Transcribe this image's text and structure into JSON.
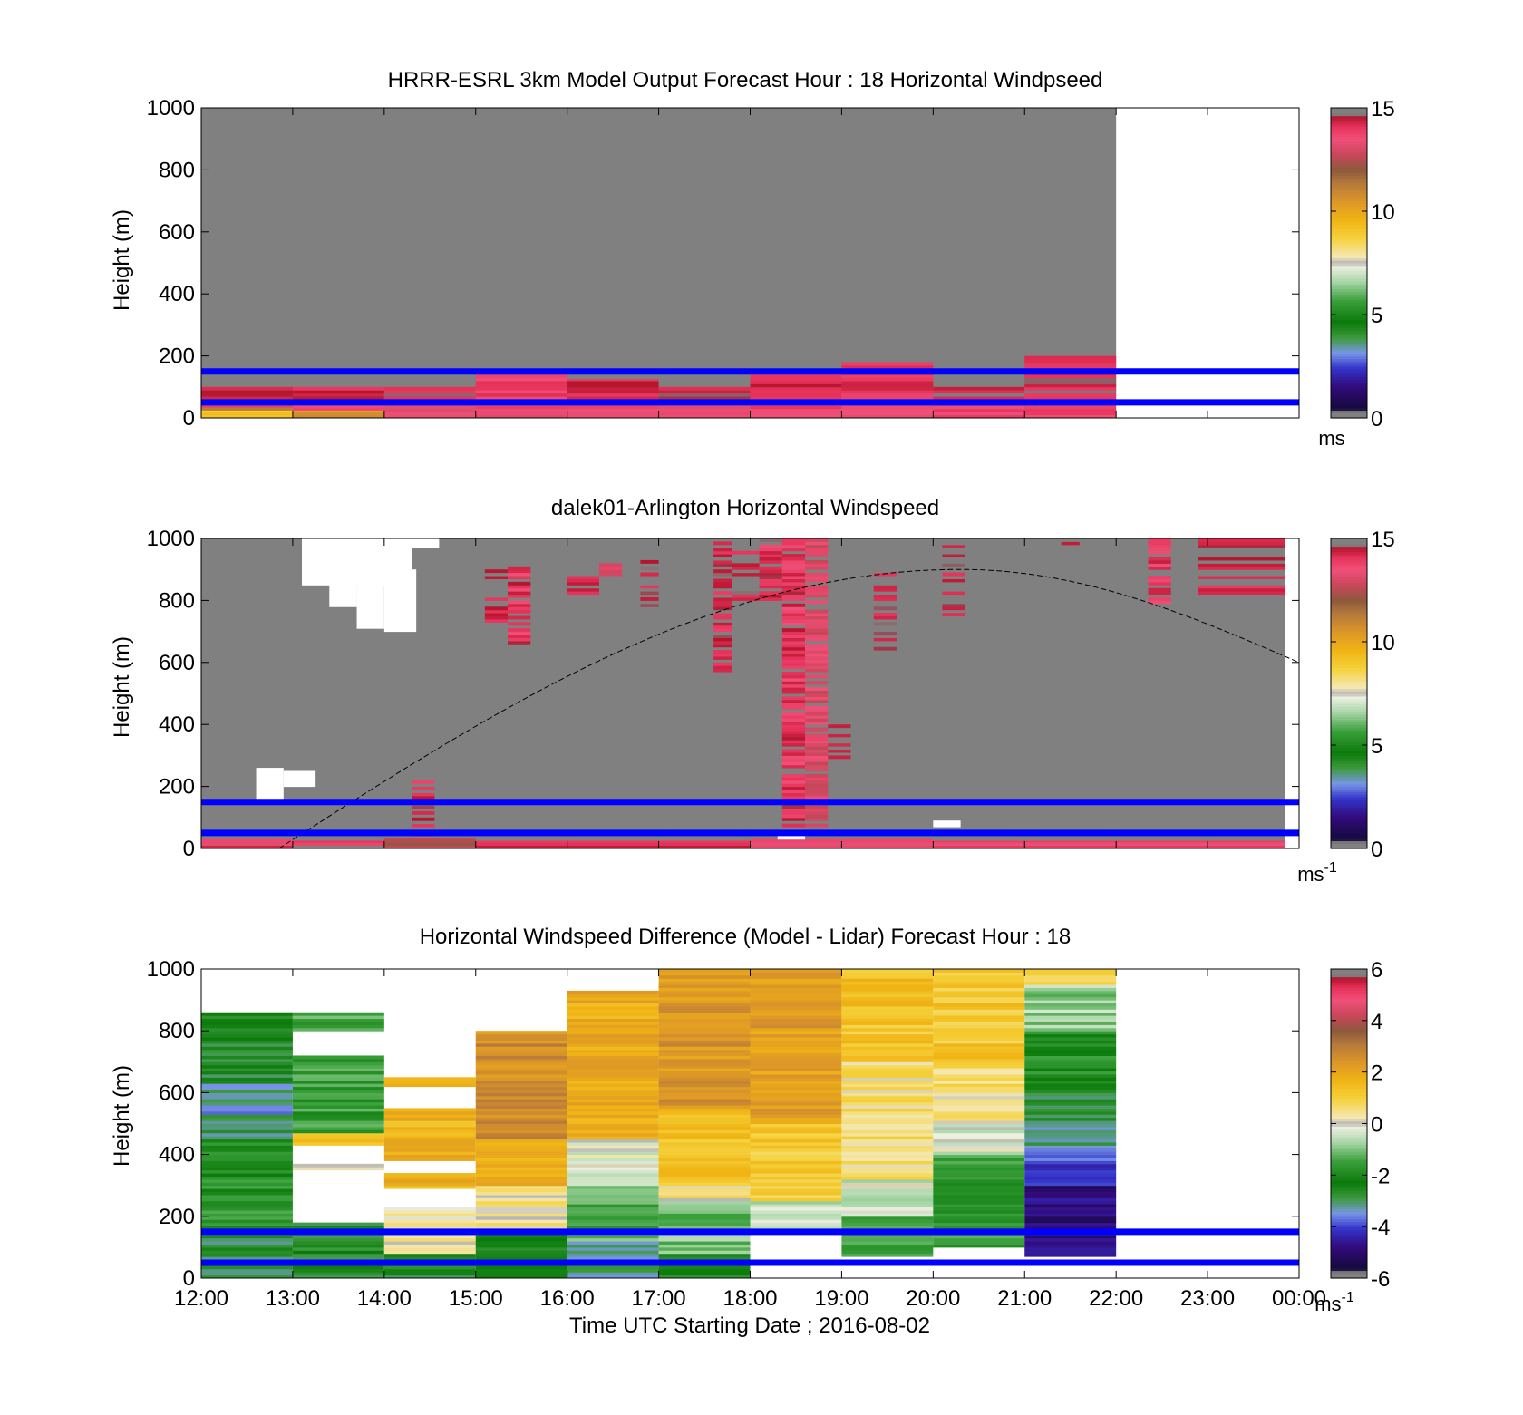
{
  "figure": {
    "xlabel": "Time UTC  Starting Date ; 2016-08-02",
    "x_tick_labels": [
      "12:00",
      "13:00",
      "14:00",
      "15:00",
      "16:00",
      "17:00",
      "18:00",
      "19:00",
      "20:00",
      "21:00",
      "22:00",
      "23:00",
      "00:00"
    ]
  },
  "chart_data": [
    {
      "type": "heatmap",
      "title": "HRRR-ESRL 3km Model Output   Forecast Hour : 18 Horizontal Windpseed",
      "ylabel": "Height (m)",
      "ylim": [
        0,
        1000
      ],
      "y_ticks": [
        0,
        200,
        400,
        600,
        800,
        1000
      ],
      "xlim_hours": [
        12,
        24
      ],
      "colorbar": {
        "range": [
          0,
          15
        ],
        "ticks": [
          0,
          5,
          10,
          15
        ],
        "unit": "ms"
      },
      "background_value": "missing (gray) 12:00-22:00, no data 22:00-00:00",
      "hourly_columns": [
        {
          "start": 12,
          "end": 13,
          "top": 100,
          "values": [
            {
              "from": 0,
              "to": 25,
              "speed": 9
            },
            {
              "from": 25,
              "to": 35,
              "speed": 11
            },
            {
              "from": 35,
              "to": 50,
              "speed": 13.5
            },
            {
              "from": 50,
              "to": 100,
              "speed": 14.2
            }
          ]
        },
        {
          "start": 13,
          "end": 14,
          "top": 100,
          "values": [
            {
              "from": 0,
              "to": 25,
              "speed": 10.5
            },
            {
              "from": 25,
              "to": 50,
              "speed": 13.5
            },
            {
              "from": 50,
              "to": 100,
              "speed": 14.2
            }
          ]
        },
        {
          "start": 14,
          "end": 15,
          "top": 100,
          "values": [
            {
              "from": 0,
              "to": 50,
              "speed": 13.5
            },
            {
              "from": 50,
              "to": 100,
              "speed": 14.3
            }
          ]
        },
        {
          "start": 15,
          "end": 16,
          "top": 145,
          "values": [
            {
              "from": 0,
              "to": 50,
              "speed": 13.5
            },
            {
              "from": 50,
              "to": 145,
              "speed": 13.8
            }
          ]
        },
        {
          "start": 16,
          "end": 17,
          "top": 125,
          "values": [
            {
              "from": 0,
              "to": 50,
              "speed": 13.6
            },
            {
              "from": 50,
              "to": 125,
              "speed": 14.3
            }
          ]
        },
        {
          "start": 17,
          "end": 18,
          "top": 100,
          "values": [
            {
              "from": 0,
              "to": 50,
              "speed": 13.6
            },
            {
              "from": 50,
              "to": 100,
              "speed": 14.3
            }
          ]
        },
        {
          "start": 18,
          "end": 19,
          "top": 145,
          "values": [
            {
              "from": 0,
              "to": 50,
              "speed": 13.6
            },
            {
              "from": 50,
              "to": 145,
              "speed": 14.2
            }
          ]
        },
        {
          "start": 19,
          "end": 20,
          "top": 180,
          "values": [
            {
              "from": 0,
              "to": 50,
              "speed": 13.6
            },
            {
              "from": 50,
              "to": 180,
              "speed": 14.0
            }
          ]
        },
        {
          "start": 20,
          "end": 21,
          "top": 100,
          "values": [
            {
              "from": 0,
              "to": 50,
              "speed": 13.7
            },
            {
              "from": 50,
              "to": 100,
              "speed": 14.4
            }
          ]
        },
        {
          "start": 21,
          "end": 22,
          "top": 200,
          "values": [
            {
              "from": 0,
              "to": 50,
              "speed": 13.7
            },
            {
              "from": 50,
              "to": 200,
              "speed": 14.3
            }
          ]
        }
      ],
      "hlines": [
        50,
        150
      ],
      "hline_color": "#0000ff"
    },
    {
      "type": "heatmap",
      "title": "dalek01-Arlington  Horizontal Windspeed",
      "ylabel": "Height (m)",
      "ylim": [
        0,
        1000
      ],
      "y_ticks": [
        0,
        200,
        400,
        600,
        800,
        1000
      ],
      "xlim_hours": [
        12,
        24
      ],
      "colorbar": {
        "range": [
          0,
          15
        ],
        "ticks": [
          0,
          5,
          10,
          15
        ],
        "unit": "ms",
        "unit_exponent": "-1"
      },
      "data_extent_hours": [
        12,
        23.85
      ],
      "background": "missing (gray)",
      "segments": [
        {
          "t0": 12.0,
          "t1": 13.0,
          "h0": 0,
          "h1": 30,
          "speed": 13.8
        },
        {
          "t0": 13.0,
          "t1": 14.0,
          "h0": 0,
          "h1": 25,
          "speed": 14.2
        },
        {
          "t0": 14.0,
          "t1": 15.0,
          "h0": 0,
          "h1": 35,
          "speed": 12.5
        },
        {
          "t0": 15.0,
          "t1": 18.0,
          "h0": 0,
          "h1": 25,
          "speed": 14.0
        },
        {
          "t0": 18.0,
          "t1": 20.0,
          "h0": 0,
          "h1": 30,
          "speed": 13.5
        },
        {
          "t0": 20.0,
          "t1": 23.85,
          "h0": 0,
          "h1": 25,
          "speed": 14.0
        },
        {
          "t0": 14.3,
          "t1": 14.55,
          "h0": 40,
          "h1": 220,
          "speed": 14.3
        },
        {
          "t0": 15.1,
          "t1": 15.35,
          "h0": 720,
          "h1": 900,
          "speed": 14.5
        },
        {
          "t0": 15.35,
          "t1": 15.6,
          "h0": 660,
          "h1": 920,
          "speed": 14.0
        },
        {
          "t0": 16.0,
          "t1": 16.35,
          "h0": 820,
          "h1": 900,
          "speed": 14.6
        },
        {
          "t0": 16.35,
          "t1": 16.6,
          "h0": 880,
          "h1": 920,
          "speed": 13.2
        },
        {
          "t0": 16.8,
          "t1": 17.0,
          "h0": 780,
          "h1": 960,
          "speed": 14.6
        },
        {
          "t0": 17.6,
          "t1": 17.8,
          "h0": 560,
          "h1": 990,
          "speed": 14.4
        },
        {
          "t0": 17.8,
          "t1": 18.1,
          "h0": 800,
          "h1": 1000,
          "speed": 14.6
        },
        {
          "t0": 18.1,
          "t1": 18.35,
          "h0": 800,
          "h1": 1000,
          "speed": 14.2
        },
        {
          "t0": 18.35,
          "t1": 18.6,
          "h0": 70,
          "h1": 1000,
          "speed": 14.0
        },
        {
          "t0": 18.6,
          "t1": 18.85,
          "h0": 70,
          "h1": 1000,
          "speed": 13.2
        },
        {
          "t0": 18.85,
          "t1": 19.1,
          "h0": 280,
          "h1": 400,
          "speed": 14.8
        },
        {
          "t0": 19.35,
          "t1": 19.6,
          "h0": 620,
          "h1": 920,
          "speed": 14.6
        },
        {
          "t0": 20.1,
          "t1": 20.35,
          "h0": 750,
          "h1": 1000,
          "speed": 14.6
        },
        {
          "t0": 21.4,
          "t1": 21.6,
          "h0": 970,
          "h1": 1000,
          "speed": 14.6
        },
        {
          "t0": 22.35,
          "t1": 22.6,
          "h0": 790,
          "h1": 1000,
          "speed": 13.8
        },
        {
          "t0": 22.9,
          "t1": 23.85,
          "h0": 820,
          "h1": 1000,
          "speed": 14.5
        }
      ],
      "nodata_patches": [
        {
          "t0": 12.6,
          "t1": 12.9,
          "h0": 150,
          "h1": 260
        },
        {
          "t0": 12.9,
          "t1": 13.25,
          "h0": 200,
          "h1": 250
        },
        {
          "t0": 13.1,
          "t1": 14.3,
          "h0": 850,
          "h1": 1000
        },
        {
          "t0": 13.4,
          "t1": 13.7,
          "h0": 780,
          "h1": 850
        },
        {
          "t0": 13.7,
          "t1": 14.0,
          "h0": 710,
          "h1": 900
        },
        {
          "t0": 14.0,
          "t1": 14.35,
          "h0": 700,
          "h1": 900
        },
        {
          "t0": 14.3,
          "t1": 14.6,
          "h0": 970,
          "h1": 1000
        },
        {
          "t0": 18.3,
          "t1": 18.6,
          "h0": 30,
          "h1": 60
        },
        {
          "t0": 20.0,
          "t1": 20.3,
          "h0": 70,
          "h1": 90
        }
      ],
      "hlines": [
        50,
        150
      ],
      "hline_color": "#0000ff",
      "dashed_curve": {
        "t_start": 12.85,
        "t_peak": 20.3,
        "t_end": 24.0,
        "h_start": 0,
        "h_peak": 900,
        "h_end": 600
      }
    },
    {
      "type": "heatmap",
      "title": "Horizontal Windspeed Difference (Model - Lidar) Forecast Hour : 18",
      "ylabel": "Height (m)",
      "ylim": [
        0,
        1000
      ],
      "y_ticks": [
        0,
        200,
        400,
        600,
        800,
        1000
      ],
      "xlim_hours": [
        12,
        24
      ],
      "colorbar": {
        "range": [
          -6,
          6
        ],
        "ticks": [
          -6,
          -4,
          -2,
          0,
          2,
          4,
          6
        ],
        "unit": "ms",
        "unit_exponent": "-1"
      },
      "hourly_columns": [
        {
          "start": 12,
          "end": 13,
          "top": 860,
          "blocks": [
            {
              "from": 0,
              "to": 150,
              "diff": -2.8
            },
            {
              "from": 150,
              "to": 450,
              "diff": -1.8
            },
            {
              "from": 450,
              "to": 530,
              "diff": -2.9
            },
            {
              "from": 530,
              "to": 630,
              "diff": -3.3
            },
            {
              "from": 630,
              "to": 860,
              "diff": -2.6
            }
          ]
        },
        {
          "start": 13,
          "end": 14,
          "top": 860,
          "blocks": [
            {
              "from": 0,
              "to": 180,
              "diff": -2.5
            },
            {
              "from": 180,
              "to": 350,
              "diff": null
            },
            {
              "from": 350,
              "to": 370,
              "diff": 0.4
            },
            {
              "from": 370,
              "to": 430,
              "diff": null
            },
            {
              "from": 430,
              "to": 470,
              "diff": 1.6
            },
            {
              "from": 470,
              "to": 720,
              "diff": -1.6
            },
            {
              "from": 720,
              "to": 800,
              "diff": null
            },
            {
              "from": 800,
              "to": 860,
              "diff": -1.3
            }
          ]
        },
        {
          "start": 14,
          "end": 15,
          "top": 650,
          "blocks": [
            {
              "from": 0,
              "to": 80,
              "diff": -2.6
            },
            {
              "from": 80,
              "to": 230,
              "diff": 0.3
            },
            {
              "from": 230,
              "to": 290,
              "diff": null
            },
            {
              "from": 290,
              "to": 340,
              "diff": 1.8
            },
            {
              "from": 340,
              "to": 380,
              "diff": null
            },
            {
              "from": 380,
              "to": 550,
              "diff": 1.7
            },
            {
              "from": 550,
              "to": 620,
              "diff": null
            },
            {
              "from": 620,
              "to": 650,
              "diff": 1.5
            }
          ]
        },
        {
          "start": 15,
          "end": 16,
          "top": 800,
          "blocks": [
            {
              "from": 0,
              "to": 150,
              "diff": -2.4
            },
            {
              "from": 150,
              "to": 300,
              "diff": 0.4
            },
            {
              "from": 300,
              "to": 450,
              "diff": 1.8
            },
            {
              "from": 450,
              "to": 800,
              "diff": 2.6
            }
          ]
        },
        {
          "start": 16,
          "end": 17,
          "top": 930,
          "blocks": [
            {
              "from": 0,
              "to": 120,
              "diff": -3.1
            },
            {
              "from": 120,
              "to": 300,
              "diff": -1.3
            },
            {
              "from": 300,
              "to": 450,
              "diff": -0.2
            },
            {
              "from": 450,
              "to": 930,
              "diff": 1.9
            }
          ]
        },
        {
          "start": 17,
          "end": 18,
          "top": 1000,
          "blocks": [
            {
              "from": 0,
              "to": 80,
              "diff": -2.5
            },
            {
              "from": 80,
              "to": 250,
              "diff": -1.0
            },
            {
              "from": 250,
              "to": 300,
              "diff": 0.4
            },
            {
              "from": 300,
              "to": 550,
              "diff": 1.4
            },
            {
              "from": 550,
              "to": 1000,
              "diff": 2.4
            }
          ]
        },
        {
          "start": 18,
          "end": 19,
          "top": 1000,
          "blocks": [
            {
              "from": 0,
              "to": 150,
              "diff": null
            },
            {
              "from": 150,
              "to": 250,
              "diff": -0.4
            },
            {
              "from": 250,
              "to": 500,
              "diff": 1.2
            },
            {
              "from": 500,
              "to": 1000,
              "diff": 2.2
            }
          ]
        },
        {
          "start": 19,
          "end": 20,
          "top": 1000,
          "blocks": [
            {
              "from": 0,
              "to": 70,
              "diff": null
            },
            {
              "from": 70,
              "to": 200,
              "diff": -1.3
            },
            {
              "from": 200,
              "to": 320,
              "diff": -0.3
            },
            {
              "from": 320,
              "to": 700,
              "diff": 0.6
            },
            {
              "from": 700,
              "to": 1000,
              "diff": 1.3
            }
          ]
        },
        {
          "start": 20,
          "end": 21,
          "top": 1000,
          "blocks": [
            {
              "from": 0,
              "to": 100,
              "diff": null
            },
            {
              "from": 100,
              "to": 400,
              "diff": -1.7
            },
            {
              "from": 400,
              "to": 500,
              "diff": -0.3
            },
            {
              "from": 500,
              "to": 700,
              "diff": 0.6
            },
            {
              "from": 700,
              "to": 1000,
              "diff": 1.2
            }
          ]
        },
        {
          "start": 21,
          "end": 22,
          "top": 1000,
          "blocks": [
            {
              "from": 0,
              "to": 70,
              "diff": null
            },
            {
              "from": 70,
              "to": 300,
              "diff": -4.8
            },
            {
              "from": 300,
              "to": 420,
              "diff": -4.0
            },
            {
              "from": 420,
              "to": 600,
              "diff": -3.0
            },
            {
              "from": 600,
              "to": 800,
              "diff": -1.9
            },
            {
              "from": 800,
              "to": 950,
              "diff": -0.8
            },
            {
              "from": 950,
              "to": 1000,
              "diff": 1.0
            }
          ]
        }
      ],
      "hlines": [
        50,
        150
      ],
      "hline_color": "#0000ff"
    }
  ]
}
